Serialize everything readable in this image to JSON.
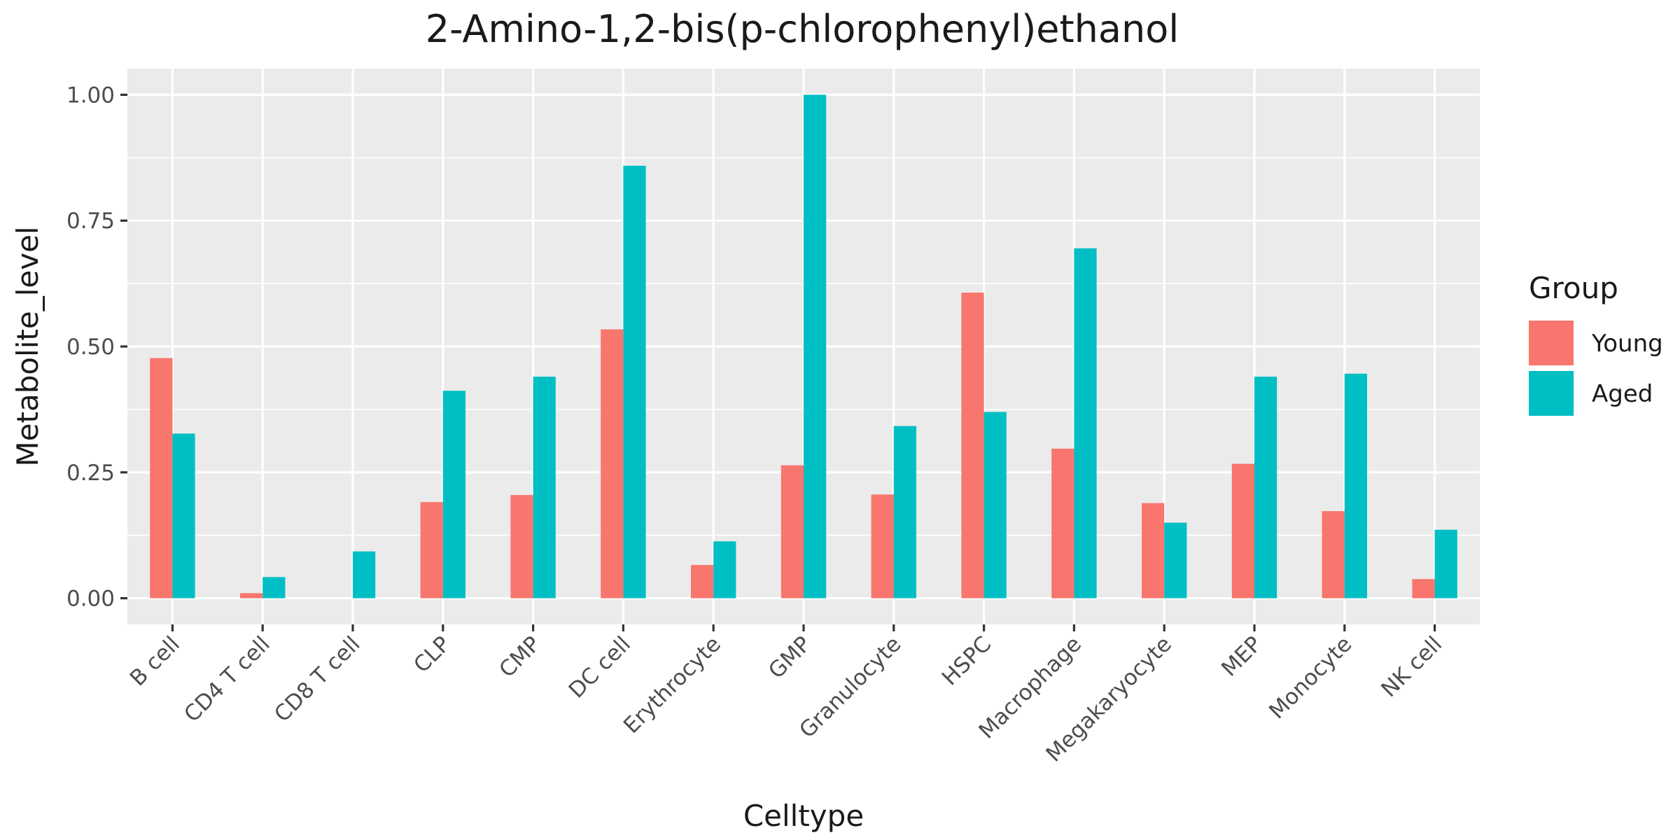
{
  "chart_data": {
    "type": "bar",
    "title": "2-Amino-1,2-bis(p-chlorophenyl)ethanol",
    "xlabel": "Celltype",
    "ylabel": "Metabolite_level",
    "categories": [
      "B cell",
      "CD4 T cell",
      "CD8 T cell",
      "CLP",
      "CMP",
      "DC cell",
      "Erythrocyte",
      "GMP",
      "Granulocyte",
      "HSPC",
      "Macrophage",
      "Megakaryocyte",
      "MEP",
      "Monocyte",
      "NK cell"
    ],
    "series": [
      {
        "name": "Young",
        "color": "#F8766D",
        "values": [
          0.477,
          0.01,
          0.0,
          0.191,
          0.205,
          0.534,
          0.066,
          0.264,
          0.206,
          0.607,
          0.297,
          0.189,
          0.267,
          0.173,
          0.038
        ]
      },
      {
        "name": "Aged",
        "color": "#00BFC4",
        "values": [
          0.327,
          0.042,
          0.093,
          0.412,
          0.44,
          0.859,
          0.113,
          1.0,
          0.342,
          0.37,
          0.695,
          0.15,
          0.44,
          0.446,
          0.136
        ]
      }
    ],
    "ylim": [
      -0.052,
      1.052
    ],
    "yticks": [
      0.0,
      0.25,
      0.5,
      0.75,
      1.0
    ],
    "ytick_labels": [
      "0.00",
      "0.25",
      "0.50",
      "0.75",
      "1.00"
    ],
    "grid": true,
    "legend": {
      "title": "Group",
      "position": "right"
    },
    "colors": {
      "panel_background": "#EBEBEB",
      "grid": "#FFFFFF",
      "tick": "#333333"
    }
  }
}
